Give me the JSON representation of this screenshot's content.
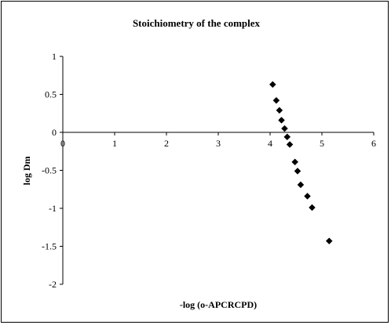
{
  "chart_data": {
    "type": "scatter",
    "title": "Stoichiometry of the complex",
    "xlabel": "-log (o-APCRCPD)",
    "ylabel": "log Dm",
    "xlim": [
      0,
      6
    ],
    "ylim": [
      -2,
      1
    ],
    "x_ticks": [
      "0",
      "1",
      "2",
      "3",
      "4",
      "5",
      "6"
    ],
    "y_ticks": [
      "1",
      "0.5",
      "0",
      "-0.5",
      "-1",
      "-1.5",
      "-2"
    ],
    "marker": "diamond",
    "marker_color": "#000000",
    "grid": false,
    "legend": false,
    "points": [
      {
        "x": 4.05,
        "y": 0.63
      },
      {
        "x": 4.12,
        "y": 0.42
      },
      {
        "x": 4.18,
        "y": 0.29
      },
      {
        "x": 4.22,
        "y": 0.16
      },
      {
        "x": 4.28,
        "y": 0.05
      },
      {
        "x": 4.33,
        "y": -0.06
      },
      {
        "x": 4.38,
        "y": -0.16
      },
      {
        "x": 4.48,
        "y": -0.39
      },
      {
        "x": 4.53,
        "y": -0.51
      },
      {
        "x": 4.59,
        "y": -0.69
      },
      {
        "x": 4.72,
        "y": -0.84
      },
      {
        "x": 4.81,
        "y": -0.99
      },
      {
        "x": 5.14,
        "y": -1.43
      }
    ]
  }
}
